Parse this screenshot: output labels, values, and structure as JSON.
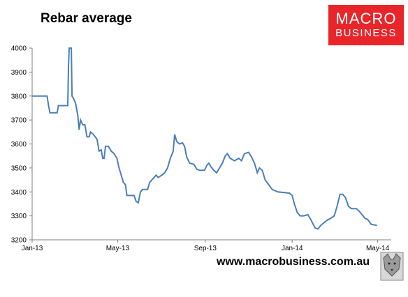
{
  "title": "Rebar average",
  "logo": {
    "line1": "MACRO",
    "line2": "BUSINESS"
  },
  "footer_url": "www.macrobusiness.com.au",
  "colors": {
    "line": "#4a7ebb",
    "axis": "#808080",
    "logo_bg": "#e8262a"
  },
  "chart_data": {
    "type": "line",
    "title": "Rebar average",
    "xlabel": "",
    "ylabel": "",
    "ylim": [
      3200,
      4000
    ],
    "xlim": [
      "2013-01-01",
      "2014-05-20"
    ],
    "yticks": [
      3200,
      3300,
      3400,
      3500,
      3600,
      3700,
      3800,
      3900,
      4000
    ],
    "xticks": [
      {
        "date": "2013-01-01",
        "label": "Jan-13"
      },
      {
        "date": "2013-05-01",
        "label": "May-13"
      },
      {
        "date": "2013-09-01",
        "label": "Sep-13"
      },
      {
        "date": "2014-01-01",
        "label": "Jan-14"
      },
      {
        "date": "2014-05-01",
        "label": "May-14"
      }
    ],
    "grid": false,
    "legend": "none",
    "series": [
      {
        "points": [
          [
            "2013-01-01",
            3800
          ],
          [
            "2013-01-22",
            3800
          ],
          [
            "2013-01-24",
            3760
          ],
          [
            "2013-01-26",
            3730
          ],
          [
            "2013-02-05",
            3730
          ],
          [
            "2013-02-07",
            3760
          ],
          [
            "2013-02-20",
            3760
          ],
          [
            "2013-02-21",
            3920
          ],
          [
            "2013-02-22",
            4000
          ],
          [
            "2013-02-25",
            4000
          ],
          [
            "2013-02-26",
            3800
          ],
          [
            "2013-02-28",
            3790
          ],
          [
            "2013-03-03",
            3770
          ],
          [
            "2013-03-06",
            3720
          ],
          [
            "2013-03-08",
            3660
          ],
          [
            "2013-03-10",
            3700
          ],
          [
            "2013-03-13",
            3680
          ],
          [
            "2013-03-16",
            3680
          ],
          [
            "2013-03-19",
            3630
          ],
          [
            "2013-03-22",
            3630
          ],
          [
            "2013-03-24",
            3650
          ],
          [
            "2013-03-28",
            3640
          ],
          [
            "2013-04-02",
            3620
          ],
          [
            "2013-04-05",
            3570
          ],
          [
            "2013-04-08",
            3575
          ],
          [
            "2013-04-10",
            3540
          ],
          [
            "2013-04-12",
            3540
          ],
          [
            "2013-04-14",
            3590
          ],
          [
            "2013-04-18",
            3590
          ],
          [
            "2013-04-22",
            3570
          ],
          [
            "2013-04-26",
            3560
          ],
          [
            "2013-04-30",
            3540
          ],
          [
            "2013-05-03",
            3500
          ],
          [
            "2013-05-06",
            3470
          ],
          [
            "2013-05-09",
            3440
          ],
          [
            "2013-05-12",
            3430
          ],
          [
            "2013-05-14",
            3385
          ],
          [
            "2013-05-24",
            3385
          ],
          [
            "2013-05-27",
            3360
          ],
          [
            "2013-05-30",
            3355
          ],
          [
            "2013-06-02",
            3400
          ],
          [
            "2013-06-05",
            3410
          ],
          [
            "2013-06-12",
            3410
          ],
          [
            "2013-06-15",
            3440
          ],
          [
            "2013-06-18",
            3450
          ],
          [
            "2013-06-21",
            3460
          ],
          [
            "2013-06-24",
            3470
          ],
          [
            "2013-06-27",
            3460
          ],
          [
            "2013-07-02",
            3470
          ],
          [
            "2013-07-06",
            3480
          ],
          [
            "2013-07-10",
            3500
          ],
          [
            "2013-07-14",
            3540
          ],
          [
            "2013-07-18",
            3570
          ],
          [
            "2013-07-20",
            3640
          ],
          [
            "2013-07-23",
            3610
          ],
          [
            "2013-07-27",
            3600
          ],
          [
            "2013-07-31",
            3605
          ],
          [
            "2013-08-03",
            3590
          ],
          [
            "2013-08-06",
            3545
          ],
          [
            "2013-08-10",
            3520
          ],
          [
            "2013-08-16",
            3515
          ],
          [
            "2013-08-20",
            3495
          ],
          [
            "2013-08-24",
            3490
          ],
          [
            "2013-08-31",
            3490
          ],
          [
            "2013-09-03",
            3510
          ],
          [
            "2013-09-06",
            3520
          ],
          [
            "2013-09-09",
            3505
          ],
          [
            "2013-09-13",
            3490
          ],
          [
            "2013-09-17",
            3480
          ],
          [
            "2013-09-21",
            3500
          ],
          [
            "2013-09-25",
            3520
          ],
          [
            "2013-09-29",
            3550
          ],
          [
            "2013-10-02",
            3560
          ],
          [
            "2013-10-06",
            3540
          ],
          [
            "2013-10-12",
            3530
          ],
          [
            "2013-10-18",
            3540
          ],
          [
            "2013-10-22",
            3530
          ],
          [
            "2013-10-26",
            3560
          ],
          [
            "2013-11-01",
            3565
          ],
          [
            "2013-11-05",
            3545
          ],
          [
            "2013-11-09",
            3520
          ],
          [
            "2013-11-13",
            3480
          ],
          [
            "2013-11-16",
            3500
          ],
          [
            "2013-11-20",
            3490
          ],
          [
            "2013-11-24",
            3450
          ],
          [
            "2013-11-29",
            3430
          ],
          [
            "2013-12-04",
            3410
          ],
          [
            "2013-12-08",
            3405
          ],
          [
            "2013-12-12",
            3400
          ],
          [
            "2013-12-28",
            3395
          ],
          [
            "2014-01-01",
            3385
          ],
          [
            "2014-01-04",
            3350
          ],
          [
            "2014-01-08",
            3315
          ],
          [
            "2014-01-12",
            3300
          ],
          [
            "2014-01-17",
            3300
          ],
          [
            "2014-01-23",
            3305
          ],
          [
            "2014-01-27",
            3285
          ],
          [
            "2014-02-02",
            3250
          ],
          [
            "2014-02-06",
            3245
          ],
          [
            "2014-02-10",
            3260
          ],
          [
            "2014-02-18",
            3280
          ],
          [
            "2014-02-24",
            3290
          ],
          [
            "2014-03-01",
            3300
          ],
          [
            "2014-03-05",
            3340
          ],
          [
            "2014-03-09",
            3390
          ],
          [
            "2014-03-13",
            3390
          ],
          [
            "2014-03-17",
            3375
          ],
          [
            "2014-03-21",
            3340
          ],
          [
            "2014-03-25",
            3330
          ],
          [
            "2014-04-01",
            3330
          ],
          [
            "2014-04-05",
            3320
          ],
          [
            "2014-04-09",
            3305
          ],
          [
            "2014-04-13",
            3290
          ],
          [
            "2014-04-17",
            3285
          ],
          [
            "2014-04-22",
            3265
          ],
          [
            "2014-04-30",
            3260
          ]
        ]
      }
    ]
  }
}
